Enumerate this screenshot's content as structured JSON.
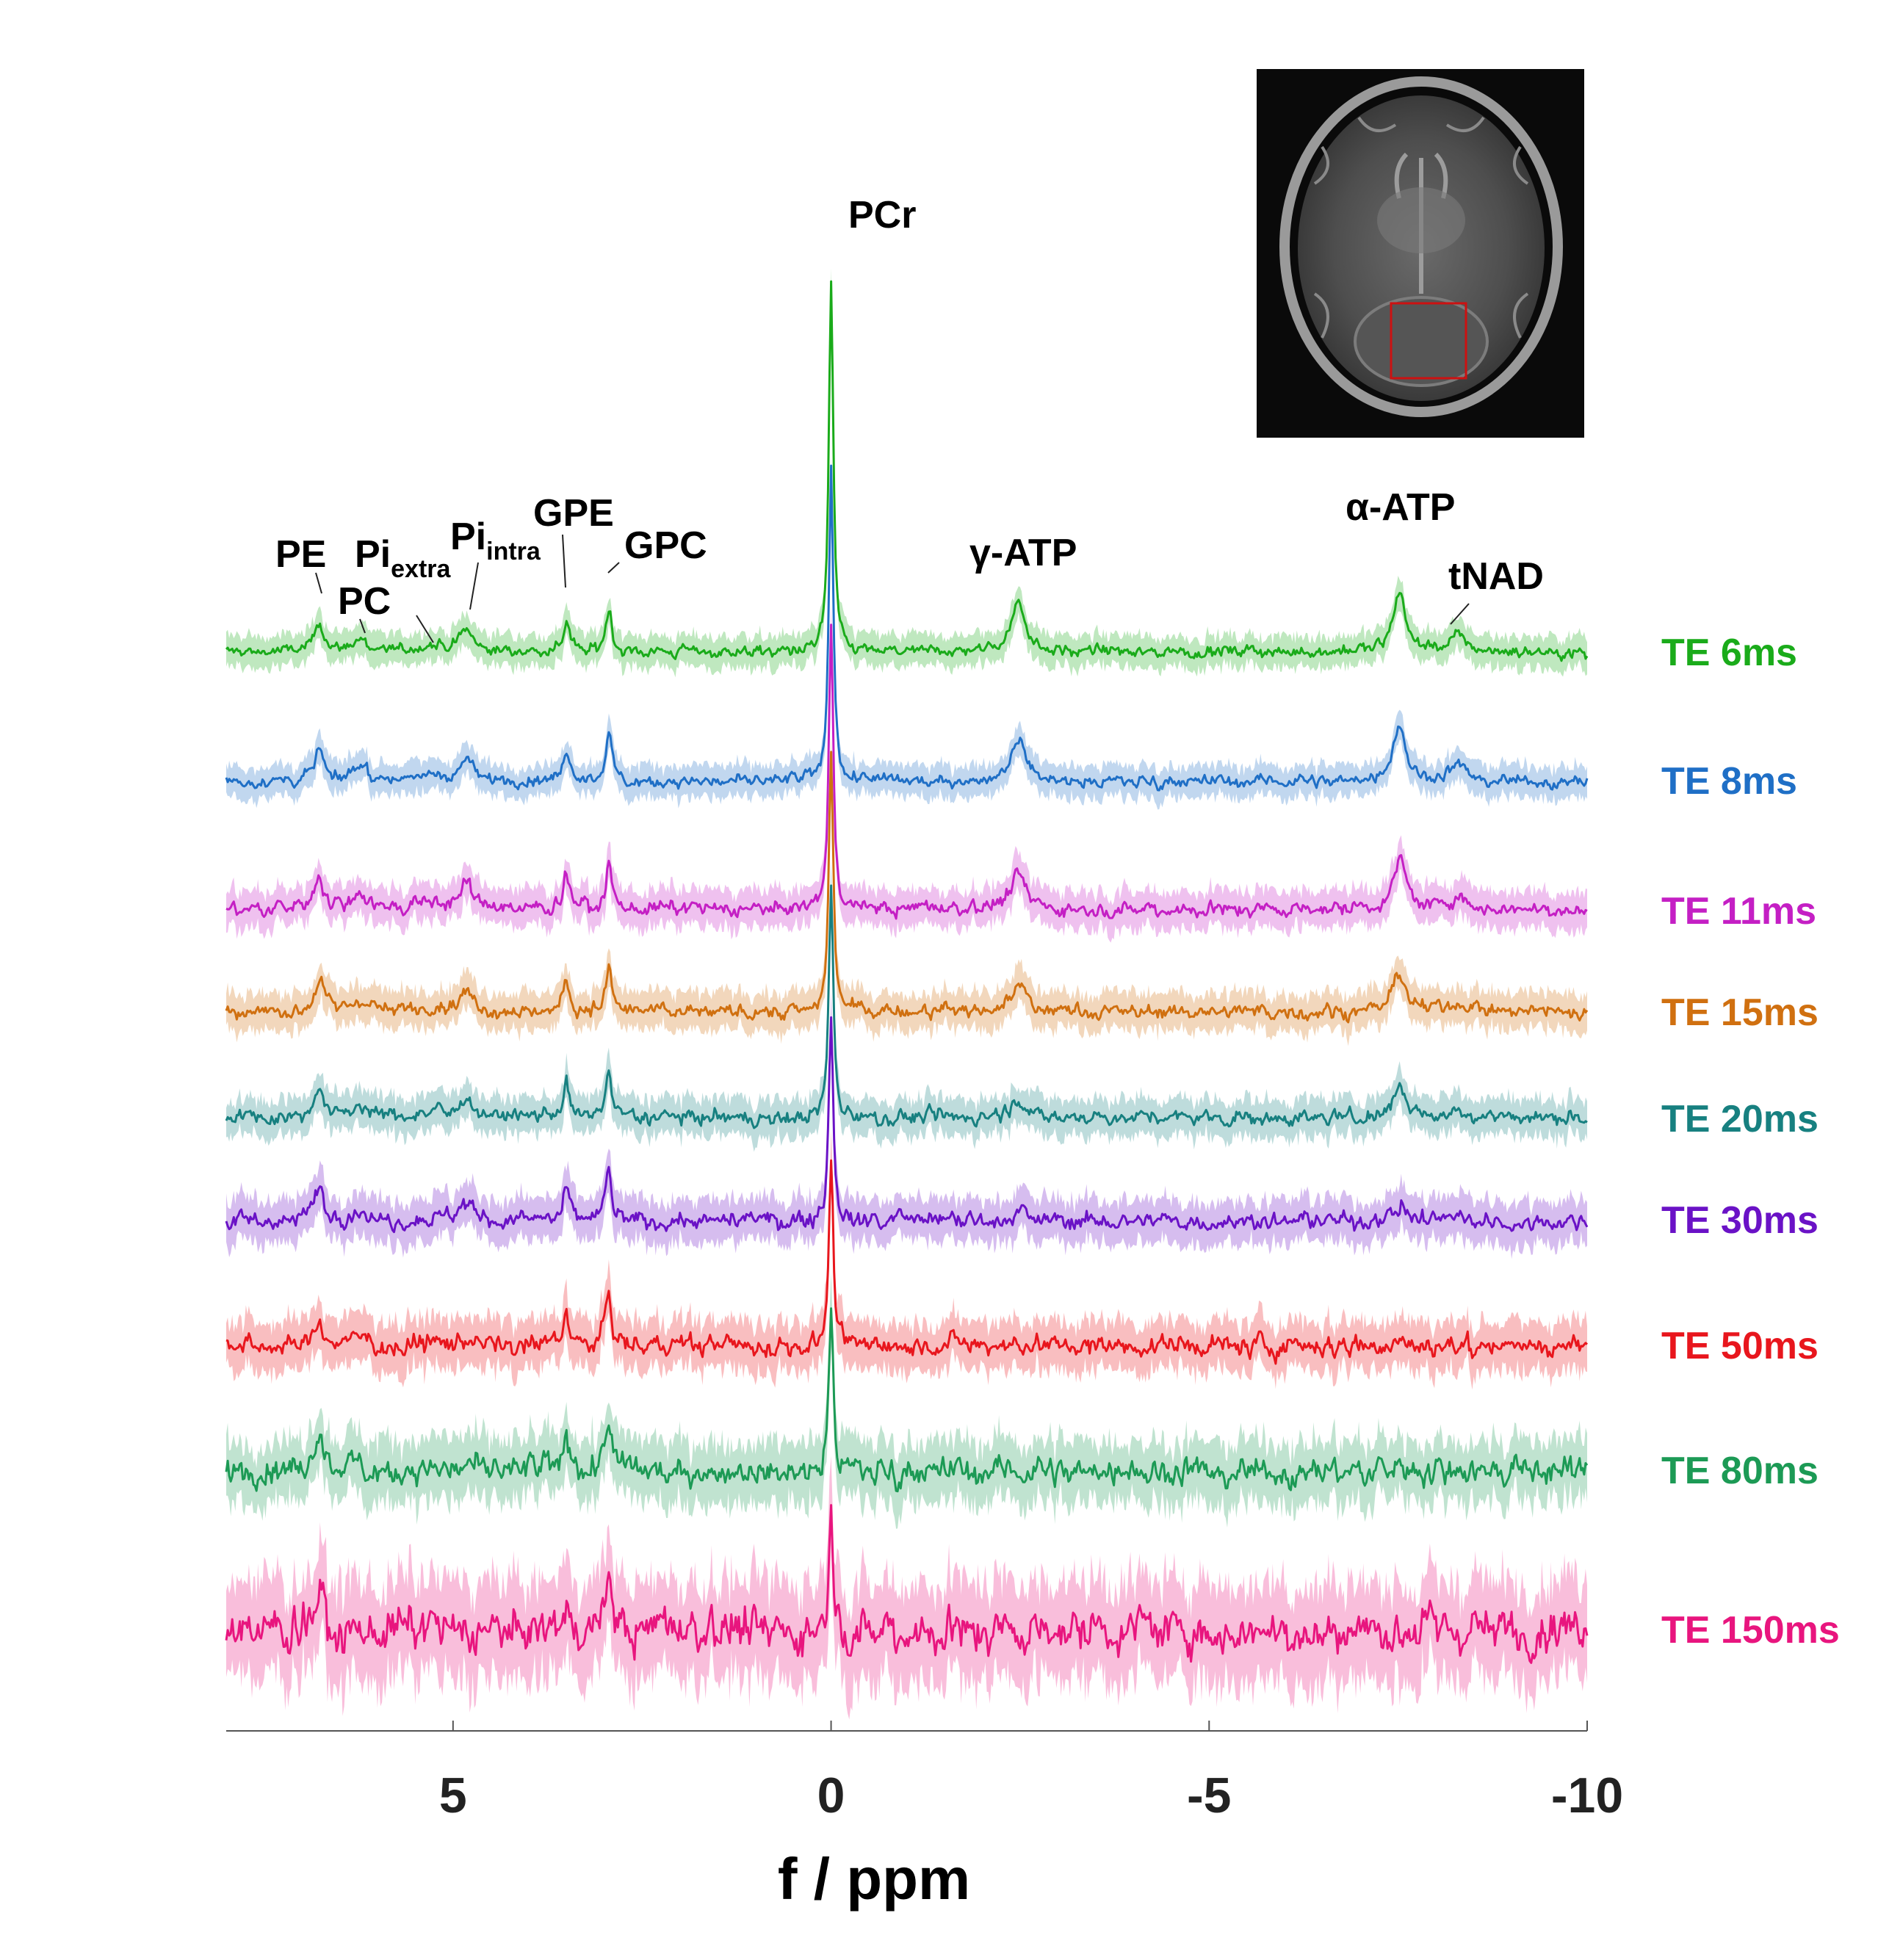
{
  "chart_data": {
    "type": "line",
    "xlabel": "f / ppm",
    "xlim": [
      8,
      -10
    ],
    "x_reversed": true,
    "x_ticks": [
      5,
      0,
      -5,
      -10
    ],
    "x_tick_labels": [
      "5",
      "0",
      "-5",
      "-10"
    ],
    "grid": false,
    "legend": "right",
    "peaks": [
      {
        "name": "PE",
        "ppm": 6.77
      },
      {
        "name": "PC",
        "ppm": 6.23
      },
      {
        "name": "Pi",
        "sub": "extra",
        "ppm": 5.3
      },
      {
        "name": "Pi",
        "sub": "intra",
        "ppm": 4.82
      },
      {
        "name": "GPE",
        "ppm": 3.5
      },
      {
        "name": "GPC",
        "ppm": 2.94
      },
      {
        "name": "PCr",
        "ppm": 0
      },
      {
        "name": "γ-ATP",
        "ppm": -2.48
      },
      {
        "name": "α-ATP",
        "ppm": -7.52
      },
      {
        "name": "tNAD",
        "ppm": -8.3
      }
    ],
    "series": [
      {
        "name": "TE 6ms",
        "color": "#1aab1a",
        "noise": 0.04,
        "heights": {
          "PE": 0.25,
          "PC": 0.1,
          "Pi_extra": 0.05,
          "Pi_intra": 0.18,
          "GPE": 0.27,
          "GPC": 0.35,
          "PCr": 3.0,
          "gATP": 0.4,
          "aATP": 0.48,
          "tNAD": 0.12
        }
      },
      {
        "name": "TE 8ms",
        "color": "#1f6fc6",
        "noise": 0.04,
        "heights": {
          "PE": 0.27,
          "PC": 0.12,
          "Pi_extra": 0.05,
          "Pi_intra": 0.18,
          "GPE": 0.26,
          "GPC": 0.37,
          "PCr": 2.55,
          "gATP": 0.35,
          "aATP": 0.45,
          "tNAD": 0.12
        }
      },
      {
        "name": "TE 11ms",
        "color": "#c41fc4",
        "noise": 0.05,
        "heights": {
          "PE": 0.27,
          "PC": 0.12,
          "Pi_extra": 0.05,
          "Pi_intra": 0.2,
          "GPE": 0.27,
          "GPC": 0.37,
          "PCr": 2.3,
          "gATP": 0.28,
          "aATP": 0.38,
          "tNAD": 0.1
        }
      },
      {
        "name": "TE 15ms",
        "color": "#d07010",
        "noise": 0.05,
        "heights": {
          "PE": 0.26,
          "PC": 0.1,
          "Pi_extra": 0.05,
          "Pi_intra": 0.15,
          "GPE": 0.25,
          "GPC": 0.35,
          "PCr": 2.1,
          "gATP": 0.22,
          "aATP": 0.3,
          "tNAD": 0.07
        }
      },
      {
        "name": "TE 20ms",
        "color": "#178080",
        "noise": 0.05,
        "heights": {
          "PE": 0.27,
          "PC": 0.1,
          "Pi_extra": 0.05,
          "Pi_intra": 0.15,
          "GPE": 0.27,
          "GPC": 0.37,
          "PCr": 1.9,
          "gATP": 0.15,
          "aATP": 0.25,
          "tNAD": 0.06
        }
      },
      {
        "name": "TE 30ms",
        "color": "#6a12c6",
        "noise": 0.06,
        "heights": {
          "PE": 0.3,
          "PC": 0.1,
          "Pi_extra": 0.04,
          "Pi_intra": 0.12,
          "GPE": 0.25,
          "GPC": 0.4,
          "PCr": 1.7,
          "gATP": 0.07,
          "aATP": 0.13,
          "tNAD": 0.05
        }
      },
      {
        "name": "TE 50ms",
        "color": "#e8161d",
        "noise": 0.07,
        "heights": {
          "PE": 0.23,
          "PC": 0.08,
          "Pi_extra": 0.03,
          "Pi_intra": 0.08,
          "GPE": 0.27,
          "GPC": 0.4,
          "PCr": 1.5,
          "gATP": 0.02,
          "aATP": 0.02,
          "tNAD": 0.0
        }
      },
      {
        "name": "TE 80ms",
        "color": "#1c9a55",
        "noise": 0.09,
        "heights": {
          "PE": 0.3,
          "PC": 0.05,
          "Pi_extra": 0.02,
          "Pi_intra": 0.06,
          "GPE": 0.27,
          "GPC": 0.37,
          "PCr": 1.35,
          "gATP": 0.0,
          "aATP": 0.0,
          "tNAD": 0.0
        }
      },
      {
        "name": "TE 150ms",
        "color": "#e8157e",
        "noise": 0.15,
        "heights": {
          "PE": 0.22,
          "PC": 0.0,
          "Pi_extra": 0.0,
          "Pi_intra": 0.0,
          "GPE": 0.15,
          "GPC": 0.4,
          "PCr": 1.05,
          "gATP": 0.0,
          "aATP": 0.0,
          "tNAD": 0.0
        }
      }
    ]
  },
  "inset": {
    "roi_color": "#cc1111"
  }
}
